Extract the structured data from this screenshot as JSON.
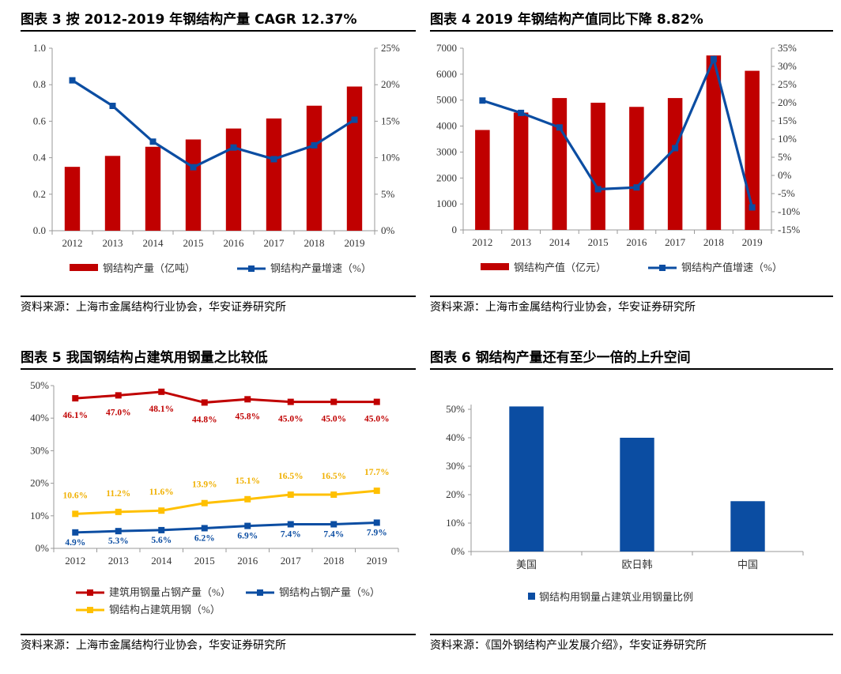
{
  "colors": {
    "red": "#C00000",
    "blue": "#0B4DA2",
    "yellow": "#FFC000",
    "darkred": "#C00000"
  },
  "panels": [
    {
      "id": "p3",
      "title": "图表 3  按 2012-2019 年钢结构产量 CAGR 12.37%",
      "source": "资料来源：上海市金属结构行业协会，华安证券研究所"
    },
    {
      "id": "p4",
      "title": "图表 4  2019 年钢结构产值同比下降 8.82%",
      "source": "资料来源：上海市金属结构行业协会，华安证券研究所"
    },
    {
      "id": "p5",
      "title": "图表 5  我国钢结构占建筑用钢量之比较低",
      "source": "资料来源：上海市金属结构行业协会，华安证券研究所"
    },
    {
      "id": "p6",
      "title": "图表 6  钢结构产量还有至少一倍的上升空间",
      "source": "资料来源：《国外钢结构产业发展介绍》，华安证券研究所"
    }
  ],
  "chart_data": [
    {
      "type": "bar+line",
      "title": "按 2012-2019 年钢结构产量 CAGR 12.37%",
      "categories": [
        "2012",
        "2013",
        "2014",
        "2015",
        "2016",
        "2017",
        "2018",
        "2019"
      ],
      "series": [
        {
          "name": "钢结构产量（亿吨）",
          "kind": "bar",
          "axis": "left",
          "values": [
            0.35,
            0.41,
            0.46,
            0.5,
            0.56,
            0.615,
            0.685,
            0.79
          ]
        },
        {
          "name": "钢结构产量增速（%）",
          "kind": "line",
          "axis": "right",
          "values": [
            20.6,
            17.1,
            12.2,
            8.7,
            11.4,
            9.8,
            11.7,
            15.2
          ]
        }
      ],
      "left_axis": {
        "min": 0,
        "max": 1.0,
        "ticks": [
          "0.0",
          "0.2",
          "0.4",
          "0.6",
          "0.8",
          "1.0"
        ]
      },
      "right_axis": {
        "min": 0,
        "max": 25,
        "ticks": [
          "0%",
          "5%",
          "10%",
          "15%",
          "20%",
          "25%"
        ]
      },
      "legend_position": "bottom"
    },
    {
      "type": "bar+line",
      "title": "2019 年钢结构产值同比下降 8.82%",
      "categories": [
        "2012",
        "2013",
        "2014",
        "2015",
        "2016",
        "2017",
        "2018",
        "2019"
      ],
      "series": [
        {
          "name": "钢结构产值（亿元）",
          "kind": "bar",
          "axis": "left",
          "values": [
            3850,
            4520,
            5080,
            4900,
            4740,
            5080,
            6720,
            6130
          ]
        },
        {
          "name": "钢结构产值增速（%）",
          "kind": "line",
          "axis": "right",
          "values": [
            20.6,
            17.2,
            13.2,
            -3.8,
            -3.3,
            7.5,
            32.0,
            -8.8
          ]
        }
      ],
      "left_axis": {
        "min": 0,
        "max": 7000,
        "ticks": [
          "0",
          "1000",
          "2000",
          "3000",
          "4000",
          "5000",
          "6000",
          "7000"
        ]
      },
      "right_axis": {
        "min": -15,
        "max": 35,
        "ticks": [
          "-15%",
          "-10%",
          "-5%",
          "0%",
          "5%",
          "10%",
          "15%",
          "20%",
          "25%",
          "30%",
          "35%"
        ]
      },
      "legend_position": "bottom"
    },
    {
      "type": "line",
      "title": "我国钢结构占建筑用钢量之比较低",
      "categories": [
        "2012",
        "2013",
        "2014",
        "2015",
        "2016",
        "2017",
        "2018",
        "2019"
      ],
      "series": [
        {
          "name": "建筑用钢量占钢产量（%）",
          "color": "red",
          "values": [
            46.1,
            47.0,
            48.1,
            44.8,
            45.8,
            45.0,
            45.0,
            45.0
          ],
          "labels": [
            "46.1%",
            "47.0%",
            "48.1%",
            "44.8%",
            "45.8%",
            "45.0%",
            "45.0%",
            "45.0%"
          ]
        },
        {
          "name": "钢结构占钢产量（%）",
          "color": "blue",
          "values": [
            4.9,
            5.3,
            5.6,
            6.2,
            6.9,
            7.4,
            7.4,
            7.9
          ],
          "labels": [
            "4.9%",
            "5.3%",
            "5.6%",
            "6.2%",
            "6.9%",
            "7.4%",
            "7.4%",
            "7.9%"
          ]
        },
        {
          "name": "钢结构占建筑用钢（%）",
          "color": "yellow",
          "values": [
            10.6,
            11.2,
            11.6,
            13.9,
            15.1,
            16.5,
            16.5,
            17.7
          ],
          "labels": [
            "10.6%",
            "11.2%",
            "11.6%",
            "13.9%",
            "15.1%",
            "16.5%",
            "16.5%",
            "17.7%"
          ]
        }
      ],
      "y_axis": {
        "min": 0,
        "max": 50,
        "ticks": [
          "0%",
          "10%",
          "20%",
          "30%",
          "40%",
          "50%"
        ]
      },
      "legend_position": "bottom"
    },
    {
      "type": "bar",
      "title": "钢结构产量还有至少一倍的上升空间",
      "categories": [
        "美国",
        "欧日韩",
        "中国"
      ],
      "series": [
        {
          "name": "钢结构用钢量占建筑业用钢量比例",
          "values": [
            51,
            40,
            17.7
          ]
        }
      ],
      "y_axis": {
        "min": 0,
        "max": 50,
        "ticks": [
          "0%",
          "10%",
          "20%",
          "30%",
          "40%",
          "50%"
        ]
      },
      "legend_position": "bottom"
    }
  ]
}
